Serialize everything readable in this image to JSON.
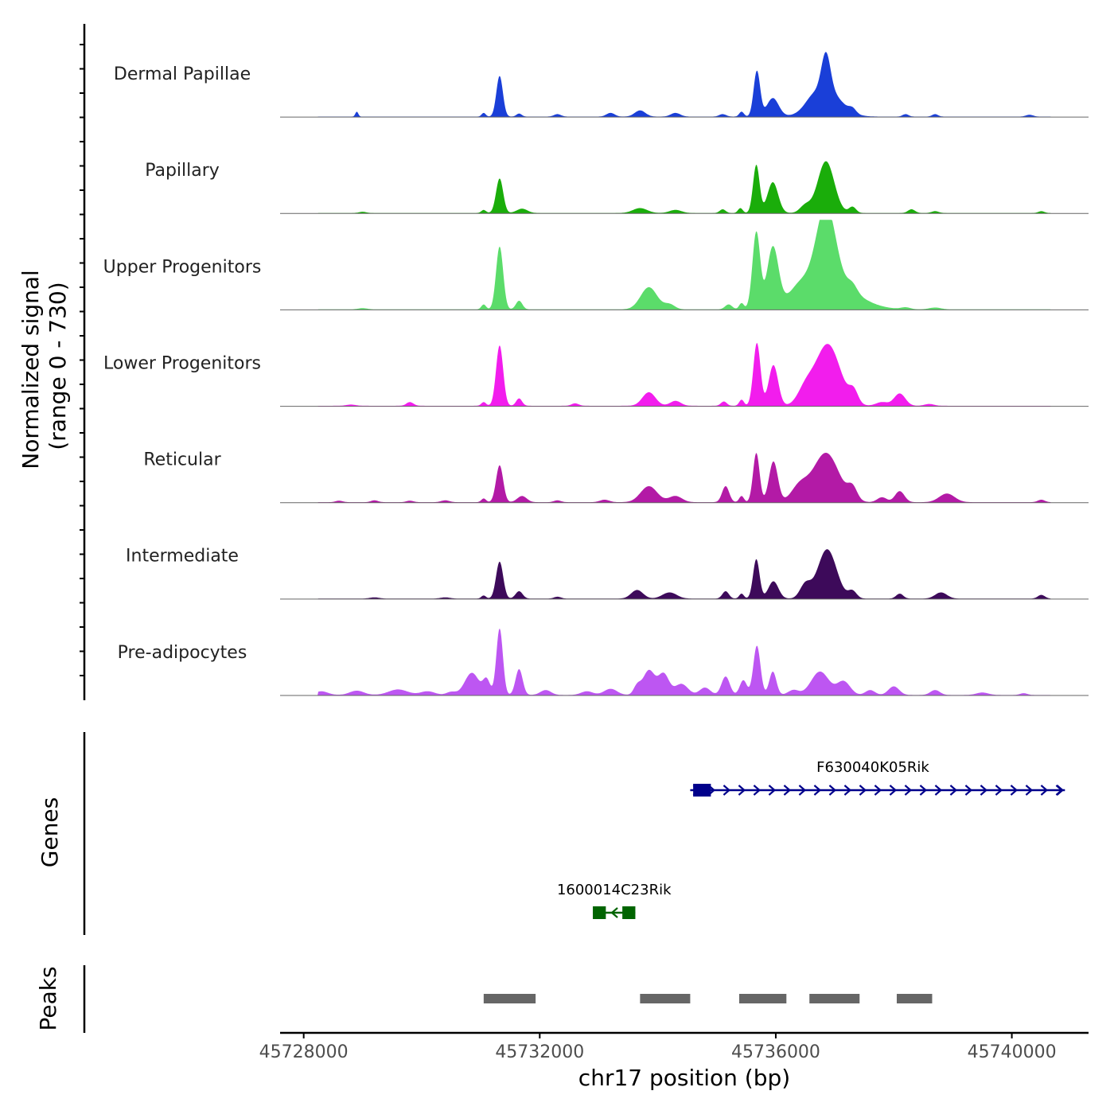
{
  "chart_data": {
    "type": "area",
    "title": "",
    "chromosome": "chr17",
    "xlabel": "chr17 position (bp)",
    "ylabel_line1": "Normalized signal",
    "ylabel_line2": "(range 0 - 730)",
    "signal_range": [
      0,
      730
    ],
    "xlim": [
      45727600,
      45741300
    ],
    "x_ticks": [
      45728000,
      45732000,
      45736000,
      45740000
    ],
    "x_tick_labels": [
      "45728000",
      "45732000",
      "45736000",
      "45740000"
    ],
    "genes_track_label": "Genes",
    "peaks_track_label": "Peaks",
    "series": [
      {
        "name": "Dermal Papillae",
        "color": "#1a3fd8",
        "bumps": [
          [
            45728900,
            40,
            25
          ],
          [
            45731050,
            30,
            35
          ],
          [
            45731320,
            330,
            55
          ],
          [
            45731650,
            25,
            45
          ],
          [
            45732300,
            20,
            60
          ],
          [
            45733200,
            30,
            70
          ],
          [
            45733700,
            50,
            90
          ],
          [
            45734300,
            30,
            80
          ],
          [
            45735100,
            20,
            60
          ],
          [
            45735420,
            40,
            40
          ],
          [
            45735680,
            370,
            55
          ],
          [
            45735950,
            150,
            100
          ],
          [
            45736600,
            40,
            120
          ],
          [
            45736850,
            220,
            250
          ],
          [
            45736850,
            300,
            75
          ],
          [
            45737300,
            35,
            60
          ],
          [
            45738200,
            20,
            50
          ],
          [
            45738700,
            20,
            50
          ],
          [
            45740300,
            15,
            60
          ]
        ]
      },
      {
        "name": "Papillary",
        "color": "#1aad0a",
        "bumps": [
          [
            45729000,
            10,
            60
          ],
          [
            45731050,
            25,
            40
          ],
          [
            45731320,
            280,
            60
          ],
          [
            45731700,
            35,
            90
          ],
          [
            45733700,
            40,
            120
          ],
          [
            45734300,
            25,
            100
          ],
          [
            45735100,
            30,
            50
          ],
          [
            45735400,
            40,
            40
          ],
          [
            45735670,
            390,
            55
          ],
          [
            45735950,
            250,
            90
          ],
          [
            45736500,
            60,
            90
          ],
          [
            45736850,
            420,
            140
          ],
          [
            45737300,
            50,
            60
          ],
          [
            45738300,
            30,
            60
          ],
          [
            45738700,
            15,
            60
          ],
          [
            45740500,
            15,
            50
          ]
        ]
      },
      {
        "name": "Upper Progenitors",
        "color": "#5bdc6a",
        "bumps": [
          [
            45729000,
            10,
            80
          ],
          [
            45731050,
            40,
            40
          ],
          [
            45731320,
            510,
            60
          ],
          [
            45731650,
            70,
            55
          ],
          [
            45733850,
            180,
            140
          ],
          [
            45734200,
            40,
            90
          ],
          [
            45735200,
            40,
            60
          ],
          [
            45735420,
            50,
            40
          ],
          [
            45735670,
            620,
            65
          ],
          [
            45735950,
            480,
            95
          ],
          [
            45736400,
            70,
            150
          ],
          [
            45736850,
            600,
            160
          ],
          [
            45736850,
            250,
            450
          ],
          [
            45737300,
            60,
            80
          ],
          [
            45738200,
            15,
            80
          ],
          [
            45738700,
            15,
            100
          ]
        ]
      },
      {
        "name": "Lower Progenitors",
        "color": "#f21ded",
        "bumps": [
          [
            45728800,
            10,
            80
          ],
          [
            45729800,
            30,
            60
          ],
          [
            45731050,
            30,
            40
          ],
          [
            45731320,
            490,
            60
          ],
          [
            45731650,
            60,
            50
          ],
          [
            45732600,
            20,
            60
          ],
          [
            45733850,
            110,
            110
          ],
          [
            45734300,
            40,
            90
          ],
          [
            45735120,
            35,
            50
          ],
          [
            45735420,
            50,
            40
          ],
          [
            45735680,
            510,
            60
          ],
          [
            45735960,
            330,
            80
          ],
          [
            45736500,
            120,
            130
          ],
          [
            45736880,
            500,
            210
          ],
          [
            45737320,
            100,
            75
          ],
          [
            45737800,
            30,
            100
          ],
          [
            45738100,
            100,
            95
          ],
          [
            45738600,
            15,
            80
          ]
        ]
      },
      {
        "name": "Reticular",
        "color": "#b31aa6",
        "bumps": [
          [
            45728000,
            15,
            80
          ],
          [
            45728600,
            12,
            60
          ],
          [
            45729200,
            15,
            60
          ],
          [
            45729800,
            12,
            60
          ],
          [
            45730400,
            15,
            70
          ],
          [
            45731050,
            30,
            40
          ],
          [
            45731320,
            300,
            60
          ],
          [
            45731700,
            50,
            80
          ],
          [
            45732300,
            15,
            60
          ],
          [
            45733100,
            20,
            80
          ],
          [
            45733850,
            130,
            140
          ],
          [
            45734300,
            50,
            110
          ],
          [
            45735150,
            130,
            60
          ],
          [
            45735420,
            50,
            40
          ],
          [
            45735670,
            400,
            55
          ],
          [
            45735960,
            330,
            75
          ],
          [
            45736400,
            120,
            140
          ],
          [
            45736850,
            400,
            220
          ],
          [
            45737300,
            100,
            80
          ],
          [
            45737800,
            40,
            80
          ],
          [
            45738100,
            90,
            80
          ],
          [
            45738900,
            70,
            130
          ],
          [
            45740500,
            20,
            60
          ]
        ]
      },
      {
        "name": "Intermediate",
        "color": "#3d0a5a",
        "bumps": [
          [
            45728000,
            10,
            80
          ],
          [
            45729200,
            10,
            80
          ],
          [
            45730400,
            10,
            80
          ],
          [
            45731050,
            25,
            40
          ],
          [
            45731320,
            300,
            60
          ],
          [
            45731650,
            60,
            60
          ],
          [
            45732300,
            15,
            60
          ],
          [
            45733650,
            70,
            100
          ],
          [
            45734200,
            50,
            120
          ],
          [
            45735150,
            60,
            55
          ],
          [
            45735420,
            40,
            40
          ],
          [
            45735670,
            320,
            55
          ],
          [
            45735960,
            140,
            85
          ],
          [
            45736500,
            110,
            90
          ],
          [
            45736870,
            400,
            160
          ],
          [
            45737300,
            60,
            70
          ],
          [
            45738100,
            40,
            60
          ],
          [
            45738800,
            50,
            100
          ],
          [
            45740500,
            30,
            60
          ]
        ]
      },
      {
        "name": "Pre-adipocytes",
        "color": "#bd56f2",
        "bumps": [
          [
            45728300,
            30,
            110
          ],
          [
            45728900,
            35,
            120
          ],
          [
            45729600,
            45,
            160
          ],
          [
            45730100,
            30,
            120
          ],
          [
            45730500,
            25,
            80
          ],
          [
            45730850,
            180,
            120
          ],
          [
            45731100,
            120,
            60
          ],
          [
            45731320,
            540,
            55
          ],
          [
            45731650,
            210,
            60
          ],
          [
            45732100,
            40,
            90
          ],
          [
            45732800,
            30,
            100
          ],
          [
            45733200,
            50,
            110
          ],
          [
            45733650,
            70,
            60
          ],
          [
            45733850,
            200,
            100
          ],
          [
            45734100,
            170,
            90
          ],
          [
            45734400,
            90,
            110
          ],
          [
            45734800,
            60,
            90
          ],
          [
            45735150,
            150,
            70
          ],
          [
            45735450,
            120,
            60
          ],
          [
            45735680,
            400,
            60
          ],
          [
            45735950,
            190,
            60
          ],
          [
            45736300,
            40,
            90
          ],
          [
            45736750,
            190,
            150
          ],
          [
            45737150,
            110,
            110
          ],
          [
            45737600,
            40,
            80
          ],
          [
            45738000,
            70,
            90
          ],
          [
            45738700,
            40,
            80
          ],
          [
            45739500,
            20,
            100
          ],
          [
            45740200,
            15,
            60
          ]
        ]
      }
    ],
    "genes": [
      {
        "name": "F630040K05Rik",
        "strand": "+",
        "color": "#00008b",
        "start": 45734550,
        "end": 45740900,
        "exons": [
          [
            45734600,
            45734900
          ]
        ]
      },
      {
        "name": "1600014C23Rik",
        "strand": "-",
        "color": "#006400",
        "start": 45732900,
        "end": 45733620,
        "exons": [
          [
            45732900,
            45733120
          ],
          [
            45733400,
            45733620
          ]
        ]
      }
    ],
    "peaks": [
      [
        45731050,
        45731930
      ],
      [
        45733700,
        45734550
      ],
      [
        45735380,
        45736180
      ],
      [
        45736570,
        45737420
      ],
      [
        45738050,
        45738650
      ]
    ]
  }
}
